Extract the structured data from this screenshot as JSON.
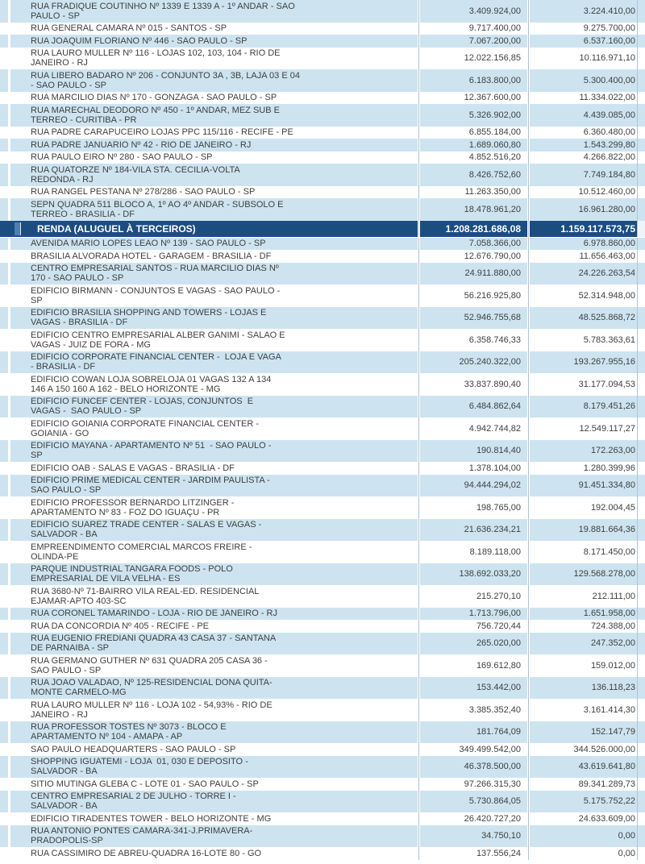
{
  "colors": {
    "stripe": "#cde4f0",
    "total_bg": "#1b4d80",
    "text": "#3f3f3f",
    "gap_line": "#b0c4d6"
  },
  "table": {
    "rows_top": [
      {
        "address": "RUA FRADIQUE COUTINHO Nº 1339 E 1339 A - 1º ANDAR - SAO\nPAULO - SP",
        "value1": "3.409.924,00",
        "value2": "3.224.410,00"
      },
      {
        "address": "RUA GENERAL CAMARA Nº 015 - SANTOS - SP",
        "value1": "9.717.400,00",
        "value2": "9.275.700,00"
      },
      {
        "address": "RUA JOAQUIM FLORIANO Nº 446 - SAO PAULO - SP",
        "value1": "7.067.200,00",
        "value2": "6.537.160,00"
      },
      {
        "address": "RUA LAURO MULLER Nº 116 - LOJAS 102, 103, 104 - RIO DE\nJANEIRO - RJ",
        "value1": "12.022.156,85",
        "value2": "10.116.971,10"
      },
      {
        "address": "RUA LIBERO BADARO Nº 206 - CONJUNTO 3A , 3B, LAJA 03 E 04\n- SAO PAULO - SP",
        "value1": "6.183.800,00",
        "value2": "5.300.400,00"
      },
      {
        "address": "RUA MARCILIO DIAS Nº 170 - GONZAGA - SAO PAULO - SP",
        "value1": "12.367.600,00",
        "value2": "11.334.022,00"
      },
      {
        "address": "RUA MARECHAL DEODORO Nº 450 - 1º ANDAR, MEZ SUB E\nTERREO - CURITIBA - PR",
        "value1": "5.326.902,00",
        "value2": "4.439.085,00"
      },
      {
        "address": "RUA PADRE CARAPUCEIRO LOJAS PPC 115/116 - RECIFE - PE",
        "value1": "6.855.184,00",
        "value2": "6.360.480,00"
      },
      {
        "address": "RUA PADRE JANUARIO Nº 42 - RIO DE JANEIRO - RJ",
        "value1": "1.689.060,80",
        "value2": "1.543.299,80"
      },
      {
        "address": "RUA PAULO EIRO Nº 280 - SAO PAULO - SP",
        "value1": "4.852.516,20",
        "value2": "4.266.822,00"
      },
      {
        "address": "RUA QUATORZE Nº 184-VILA STA. CECILIA-VOLTA\nREDONDA - RJ",
        "value1": "8.426.752,60",
        "value2": "7.749.184,80"
      },
      {
        "address": "RUA RANGEL PESTANA Nº 278/286 - SAO PAULO - SP",
        "value1": "11.263.350,00",
        "value2": "10.512.460,00"
      },
      {
        "address": "SEPN QUADRA 511 BLOCO A, 1º AO 4º ANDAR - SUBSOLO E\nTERREO - BRASILIA - DF",
        "value1": "18.478.961,20",
        "value2": "16.961.280,00"
      }
    ],
    "total_row": {
      "label": "RENDA (ALUGUEL À TERCEIROS)",
      "value1": "1.208.281.686,08",
      "value2": "1.159.117.573,75"
    },
    "rows_bottom": [
      {
        "address": "AVENIDA MARIO LOPES LEAO Nº 139 - SAO PAULO - SP",
        "value1": "7.058.366,00",
        "value2": "6.978.860,00"
      },
      {
        "address": "BRASILIA ALVORADA HOTEL - GARAGEM - BRASILIA - DF",
        "value1": "12.676.790,00",
        "value2": "11.656.463,00"
      },
      {
        "address": "CENTRO EMPRESARIAL SANTOS - RUA MARCILIO DIAS Nº\n170 - SAO PAULO - SP",
        "value1": "24.911.880,00",
        "value2": "24.226.263,54"
      },
      {
        "address": "EDIFICIO BIRMANN - CONJUNTOS E VAGAS - SAO PAULO -\nSP",
        "value1": "56.216.925,80",
        "value2": "52.314.948,00"
      },
      {
        "address": "EDIFICIO BRASILIA SHOPPING AND TOWERS - LOJAS E\nVAGAS - BRASILIA - DF",
        "value1": "52.946.755,68",
        "value2": "48.525.868,72"
      },
      {
        "address": "EDIFICIO CENTRO EMPRESARIAL ALBER GANIMI - SALAO E\nVAGAS - JUIZ DE FORA - MG",
        "value1": "6.358.746,33",
        "value2": "5.783.363,61"
      },
      {
        "address": "EDIFICIO CORPORATE FINANCIAL CENTER -  LOJA E VAGA\n- BRASILIA - DF",
        "value1": "205.240.322,00",
        "value2": "193.267.955,16"
      },
      {
        "address": "EDIFICIO COWAN LOJA SOBRELOJA 01 VAGAS 132 A 134\n146 A 150 160 A 162 - BELO HORIZONTE - MG",
        "value1": "33.837.890,40",
        "value2": "31.177.094,53"
      },
      {
        "address": "EDIFICIO FUNCEF CENTER - LOJAS, CONJUNTOS  E\nVAGAS -  SAO PAULO - SP",
        "value1": "6.484.862,64",
        "value2": "8.179.451,26"
      },
      {
        "address": "EDIFICIO GOIANIA CORPORATE FINANCIAL CENTER -\nGOIANIA - GO",
        "value1": "4.942.744,82",
        "value2": "12.549.117,27"
      },
      {
        "address": "EDIFICIO MAYANA - APARTAMENTO Nº 51  - SAO PAULO -\nSP",
        "value1": "190.814,40",
        "value2": "172.263,00"
      },
      {
        "address": "EDIFICIO OAB - SALAS E VAGAS - BRASILIA - DF",
        "value1": "1.378.104,00",
        "value2": "1.280.399,96"
      },
      {
        "address": "EDIFICIO PRIME MEDICAL CENTER - JARDIM PAULISTA -\nSAO PAULO - SP",
        "value1": "94.444.294,02",
        "value2": "91.451.334,80"
      },
      {
        "address": "EDIFICIO PROFESSOR BERNARDO LITZINGER -\nAPARTAMENTO Nº 83 - FOZ DO IGUAÇU - PR",
        "value1": "198.765,00",
        "value2": "192.004,45"
      },
      {
        "address": "EDIFICIO SUAREZ TRADE CENTER - SALAS E VAGAS -\nSALVADOR - BA",
        "value1": "21.636.234,21",
        "value2": "19.881.664,36"
      },
      {
        "address": "EMPREENDIMENTO COMERCIAL MARCOS FREIRE -\nOLINDA-PE",
        "value1": "8.189.118,00",
        "value2": "8.171.450,00"
      },
      {
        "address": "PARQUE INDUSTRIAL TANGARA FOODS - POLO\nEMPRESARIAL DE VILA VELHA - ES",
        "value1": "138.692.033,20",
        "value2": "129.568.278,00"
      },
      {
        "address": "RUA 3680-Nº 71-BAIRRO VILA REAL-ED. RESIDENCIAL\nEJAMAR-APTO 403-SC",
        "value1": "215.270,10",
        "value2": "212.111,00"
      },
      {
        "address": "RUA CORONEL TAMARINDO - LOJA - RIO DE JANEIRO - RJ",
        "value1": "1.713.796,00",
        "value2": "1.651.958,00"
      },
      {
        "address": "RUA DA CONCORDIA Nº 405 - RECIFE - PE",
        "value1": "756.720,44",
        "value2": "724.388,00"
      },
      {
        "address": "RUA EUGENIO FREDIANI QUADRA 43 CASA 37 - SANTANA\nDE PARNAIBA - SP",
        "value1": "265.020,00",
        "value2": "247.352,00"
      },
      {
        "address": "RUA GERMANO GUTHER Nº 631 QUADRA 205 CASA 36 -\nSAO PAULO - SP",
        "value1": "169.612,80",
        "value2": "159.012,00"
      },
      {
        "address": "RUA JOAO VALADAO, Nº 125-RESIDENCIAL DONA QUITA-\nMONTE CARMELO-MG",
        "value1": "153.442,00",
        "value2": "136.118,23"
      },
      {
        "address": "RUA LAURO MULLER Nº 116 - LOJA 102 - 54,93% - RIO DE\nJANEIRO - RJ",
        "value1": "3.385.352,40",
        "value2": "3.161.414,30"
      },
      {
        "address": "RUA PROFESSOR TOSTES Nº 3073 - BLOCO E\nAPARTAMENTO Nº 104 - AMAPA - AP",
        "value1": "181.764,09",
        "value2": "152.147,79"
      },
      {
        "address": "SAO PAULO HEADQUARTERS - SAO PAULO - SP",
        "value1": "349.499.542,00",
        "value2": "344.526.000,00"
      },
      {
        "address": "SHOPPING IGUATEMI - LOJA  01, 030 E DEPOSITO -\nSALVADOR - BA",
        "value1": "46.378.500,00",
        "value2": "43.619.641,80"
      },
      {
        "address": "SITIO MUTINGA GLEBA C - LOTE 01 - SAO PAULO - SP",
        "value1": "97.266.315,30",
        "value2": "89.341.289,73"
      },
      {
        "address": "CENTRO EMPRESARIAL 2 DE JULHO - TORRE I -\nSALVADOR - BA",
        "value1": "5.730.864,05",
        "value2": "5.175.752,22"
      },
      {
        "address": "EDIFICIO TIRADENTES TOWER - BELO HORIZONTE - MG",
        "value1": "26.420.727,20",
        "value2": "24.633.609,00"
      },
      {
        "address": "RUA ANTONIO PONTES CAMARA-341-J.PRIMAVERA-\nPRADOPOLIS-SP",
        "value1": "34.750,10",
        "value2": "0,00"
      },
      {
        "address": "RUA CASSIMIRO DE ABREU-QUADRA 16-LOTE 80 - GO",
        "value1": "137.556,24",
        "value2": "0,00"
      }
    ]
  }
}
